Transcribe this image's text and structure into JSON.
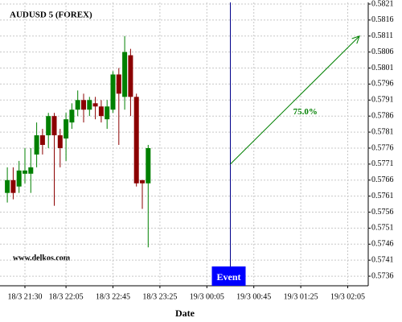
{
  "chart_data": {
    "type": "candlestick",
    "title": "AUDUSD 5 (FOREX)",
    "x_label": "Date",
    "x": [
      "18/3 21:15",
      "18/3 21:20",
      "18/3 21:25",
      "18/3 21:30",
      "18/3 21:35",
      "18/3 21:40",
      "18/3 21:45",
      "18/3 21:50",
      "18/3 21:55",
      "18/3 22:00",
      "18/3 22:05",
      "18/3 22:10",
      "18/3 22:15",
      "18/3 22:20",
      "18/3 22:25",
      "18/3 22:30",
      "18/3 22:35",
      "18/3 22:40",
      "18/3 22:45",
      "18/3 22:50",
      "18/3 22:55",
      "18/3 23:00",
      "18/3 23:05",
      "18/3 23:10",
      "18/3 23:15"
    ],
    "open": [
      0.5762,
      0.5766,
      0.5764,
      0.5768,
      0.5768,
      0.5774,
      0.578,
      0.578,
      0.5786,
      0.578,
      0.5779,
      0.5784,
      0.5788,
      0.5791,
      0.5788,
      0.579,
      0.5789,
      0.5785,
      0.5788,
      0.5799,
      0.5792,
      0.5805,
      0.5792,
      0.5766,
      0.5765
    ],
    "high": [
      0.577,
      0.577,
      0.5772,
      0.5776,
      0.5776,
      0.5784,
      0.5782,
      0.5787,
      0.5787,
      0.5782,
      0.5787,
      0.579,
      0.5794,
      0.5793,
      0.5792,
      0.5792,
      0.5791,
      0.5791,
      0.58,
      0.5801,
      0.5811,
      0.5807,
      0.5793,
      0.5766,
      0.5777
    ],
    "low": [
      0.5759,
      0.576,
      0.5762,
      0.5765,
      0.5762,
      0.577,
      0.5774,
      0.5776,
      0.5758,
      0.577,
      0.5772,
      0.5782,
      0.5786,
      0.5784,
      0.5786,
      0.5785,
      0.5784,
      0.5782,
      0.5787,
      0.5777,
      0.5788,
      0.5786,
      0.5764,
      0.5757,
      0.5745
    ],
    "close": [
      0.5766,
      0.5762,
      0.5769,
      0.5769,
      0.577,
      0.578,
      0.5777,
      0.5786,
      0.578,
      0.5776,
      0.5785,
      0.5788,
      0.5791,
      0.5788,
      0.5791,
      0.5789,
      0.5786,
      0.5789,
      0.5799,
      0.5793,
      0.5806,
      0.5792,
      0.5765,
      0.5765,
      0.5776
    ],
    "up_color": "#008000",
    "down_color": "#8b0000",
    "ylim": [
      0.5733,
      0.58215
    ],
    "yticks": [
      0.5736,
      0.5741,
      0.5746,
      0.5751,
      0.5756,
      0.5761,
      0.5766,
      0.5771,
      0.5776,
      0.5781,
      0.5786,
      0.5791,
      0.5796,
      0.5801,
      0.5806,
      0.5811,
      0.5816,
      0.5821
    ],
    "xticks": [
      "18/3 21:30",
      "18/3 22:05",
      "18/3 22:45",
      "18/3 23:25",
      "19/3 00:05",
      "19/3 00:45",
      "19/3 01:25",
      "19/3 02:05"
    ],
    "grid": true,
    "event": {
      "x": "19/3 00:25",
      "label": "Event",
      "color": "#0000ff",
      "line_color": "#00008b"
    },
    "arrow": {
      "x": [
        "19/3 00:25",
        "19/3 02:15"
      ],
      "y": [
        0.5771,
        0.5811
      ],
      "label": "75.0%",
      "color": "#008000"
    },
    "watermark": "www.delkos.com"
  }
}
